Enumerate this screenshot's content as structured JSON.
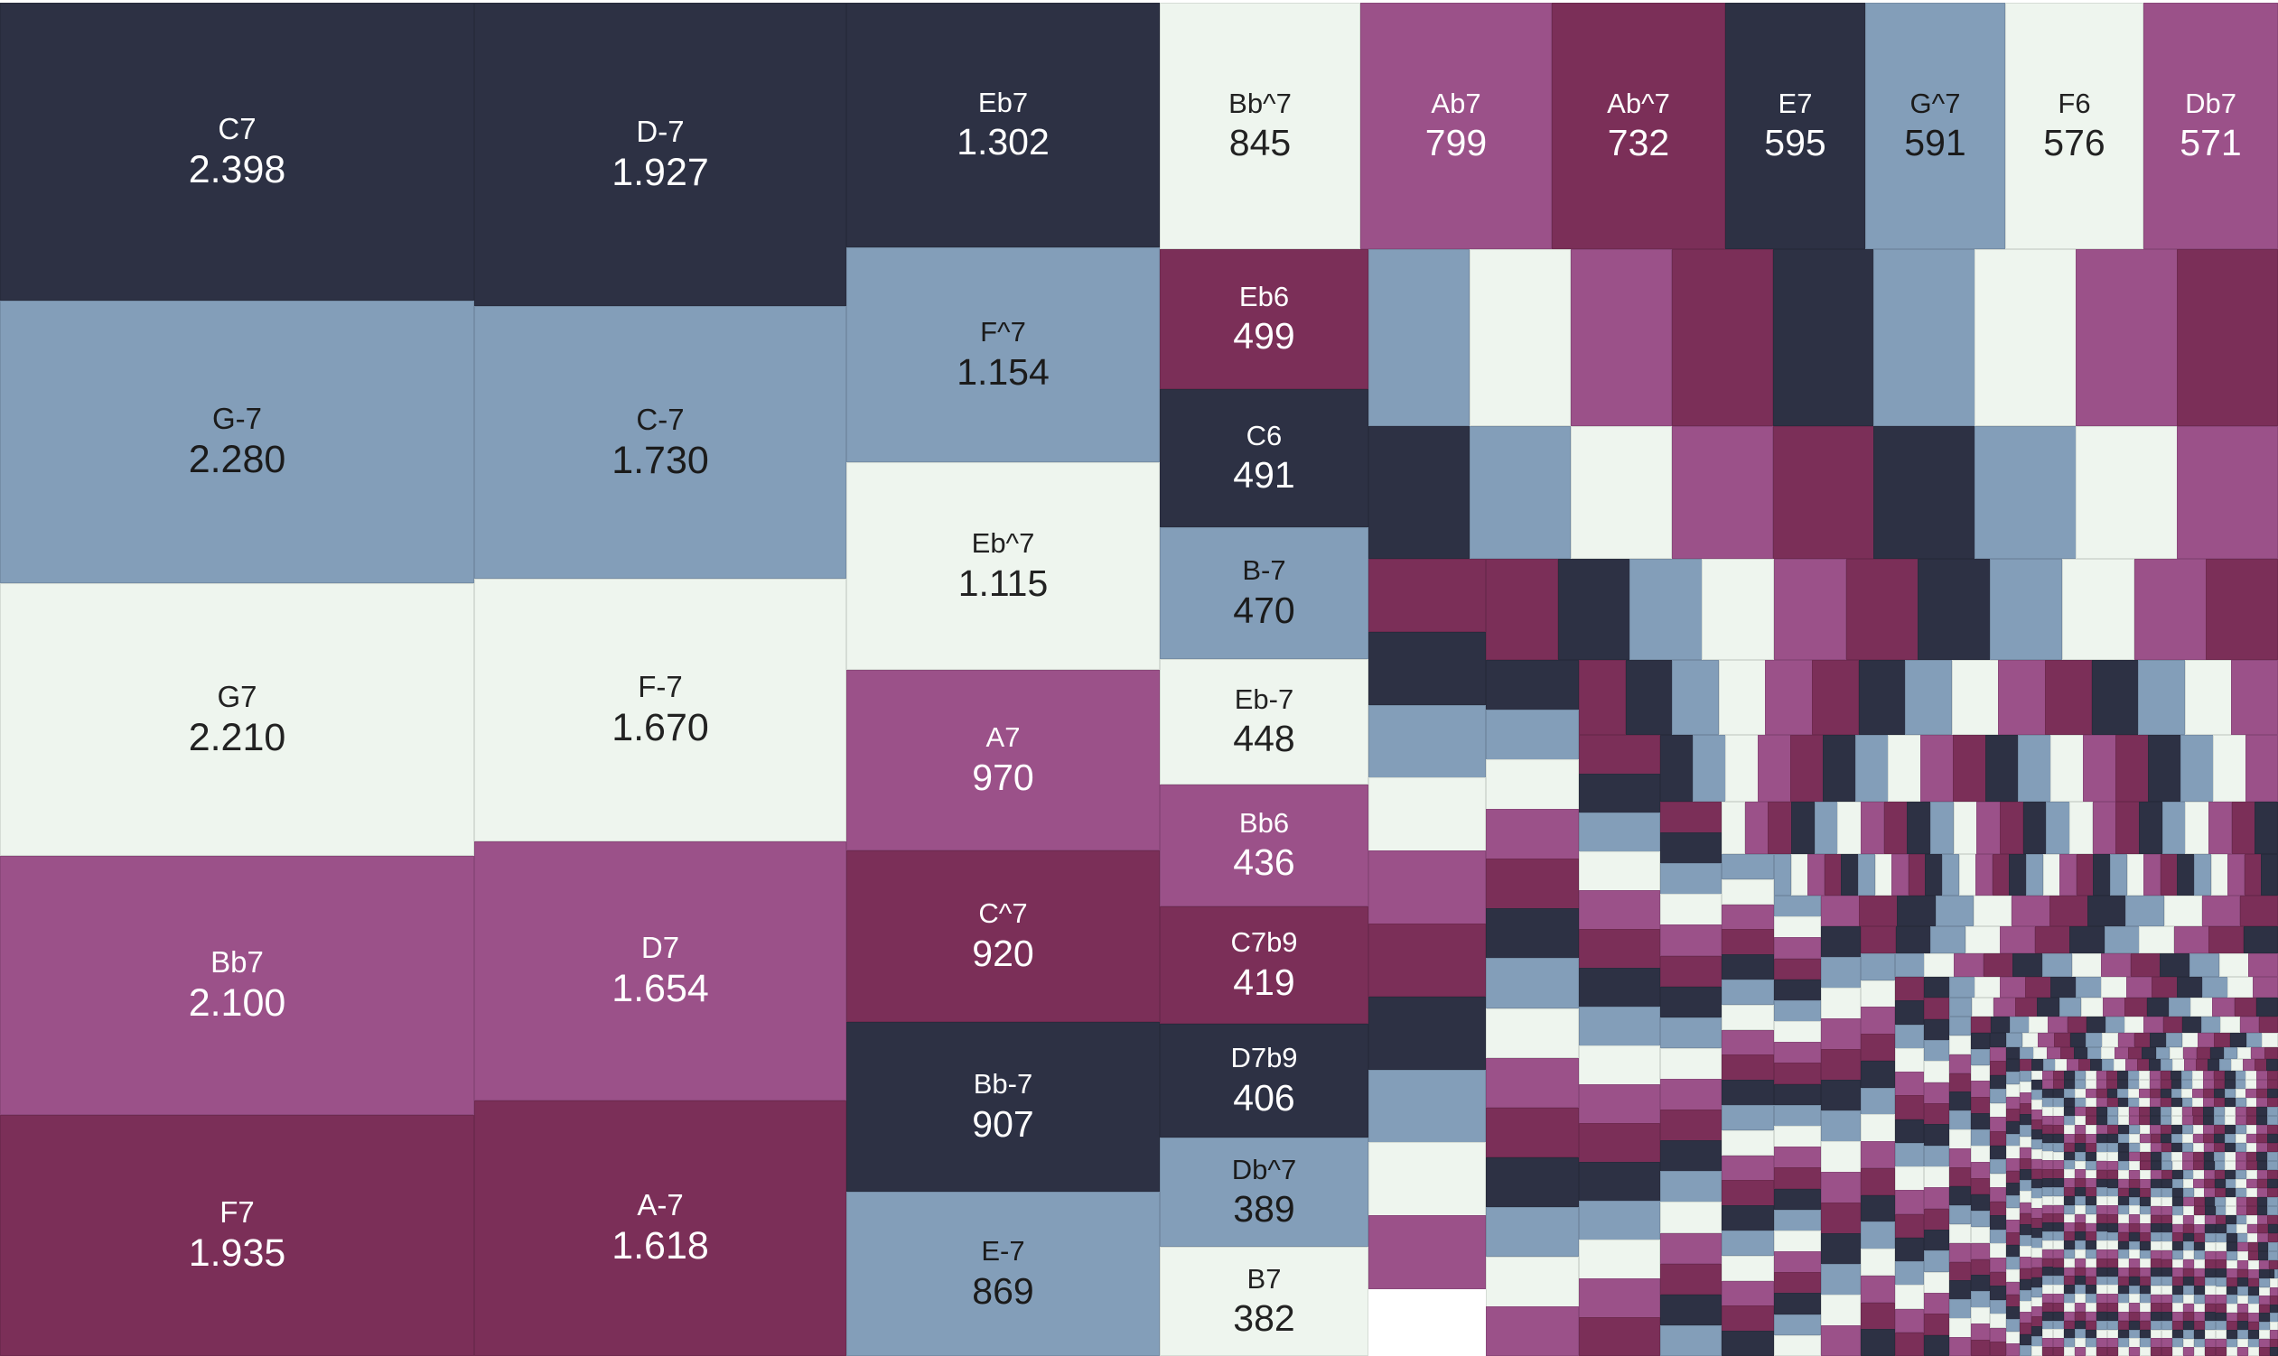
{
  "chart_data": {
    "type": "treemap",
    "title": "",
    "palette": [
      "#2d3144",
      "#839eb9",
      "#eef5ee",
      "#9b5189",
      "#7b2f58"
    ],
    "text_colors": {
      "#2d3144": "#ffffff",
      "#839eb9": "#1b1b1b",
      "#eef5ee": "#222222",
      "#9b5189": "#ffffff",
      "#7b2f58": "#ffffff"
    },
    "items": [
      {
        "name": "C7",
        "value": "2.398",
        "color": "#2d3144"
      },
      {
        "name": "G-7",
        "value": "2.280",
        "color": "#839eb9"
      },
      {
        "name": "G7",
        "value": "2.210",
        "color": "#eef5ee"
      },
      {
        "name": "Bb7",
        "value": "2.100",
        "color": "#9b5189"
      },
      {
        "name": "F7",
        "value": "1.935",
        "color": "#7b2f58"
      },
      {
        "name": "D-7",
        "value": "1.927",
        "color": "#2d3144"
      },
      {
        "name": "C-7",
        "value": "1.730",
        "color": "#839eb9"
      },
      {
        "name": "F-7",
        "value": "1.670",
        "color": "#eef5ee"
      },
      {
        "name": "D7",
        "value": "1.654",
        "color": "#9b5189"
      },
      {
        "name": "A-7",
        "value": "1.618",
        "color": "#7b2f58"
      },
      {
        "name": "Eb7",
        "value": "1.302",
        "color": "#2d3144"
      },
      {
        "name": "F^7",
        "value": "1.154",
        "color": "#839eb9"
      },
      {
        "name": "Eb^7",
        "value": "1.115",
        "color": "#eef5ee"
      },
      {
        "name": "A7",
        "value": "970",
        "color": "#9b5189"
      },
      {
        "name": "C^7",
        "value": "920",
        "color": "#7b2f58"
      },
      {
        "name": "Bb-7",
        "value": "907",
        "color": "#2d3144"
      },
      {
        "name": "E-7",
        "value": "869",
        "color": "#839eb9"
      },
      {
        "name": "Bb^7",
        "value": "845",
        "color": "#eef5ee"
      },
      {
        "name": "Ab7",
        "value": "799",
        "color": "#9b5189"
      },
      {
        "name": "Ab^7",
        "value": "732",
        "color": "#7b2f58"
      },
      {
        "name": "E7",
        "value": "595",
        "color": "#2d3144"
      },
      {
        "name": "G^7",
        "value": "591",
        "color": "#839eb9"
      },
      {
        "name": "F6",
        "value": "576",
        "color": "#eef5ee"
      },
      {
        "name": "Db7",
        "value": "571",
        "color": "#9b5189"
      },
      {
        "name": "Eb6",
        "value": "499",
        "color": "#7b2f58"
      },
      {
        "name": "C6",
        "value": "491",
        "color": "#2d3144"
      },
      {
        "name": "B-7",
        "value": "470",
        "color": "#839eb9"
      },
      {
        "name": "Eb-7",
        "value": "448",
        "color": "#eef5ee"
      },
      {
        "name": "Bb6",
        "value": "436",
        "color": "#9b5189"
      },
      {
        "name": "C7b9",
        "value": "419",
        "color": "#7b2f58"
      },
      {
        "name": "D7b9",
        "value": "406",
        "color": "#2d3144"
      },
      {
        "name": "Db^7",
        "value": "389",
        "color": "#839eb9"
      },
      {
        "name": "B7",
        "value": "382",
        "color": "#eef5ee"
      }
    ],
    "unlabeled_tail_count": 400
  }
}
